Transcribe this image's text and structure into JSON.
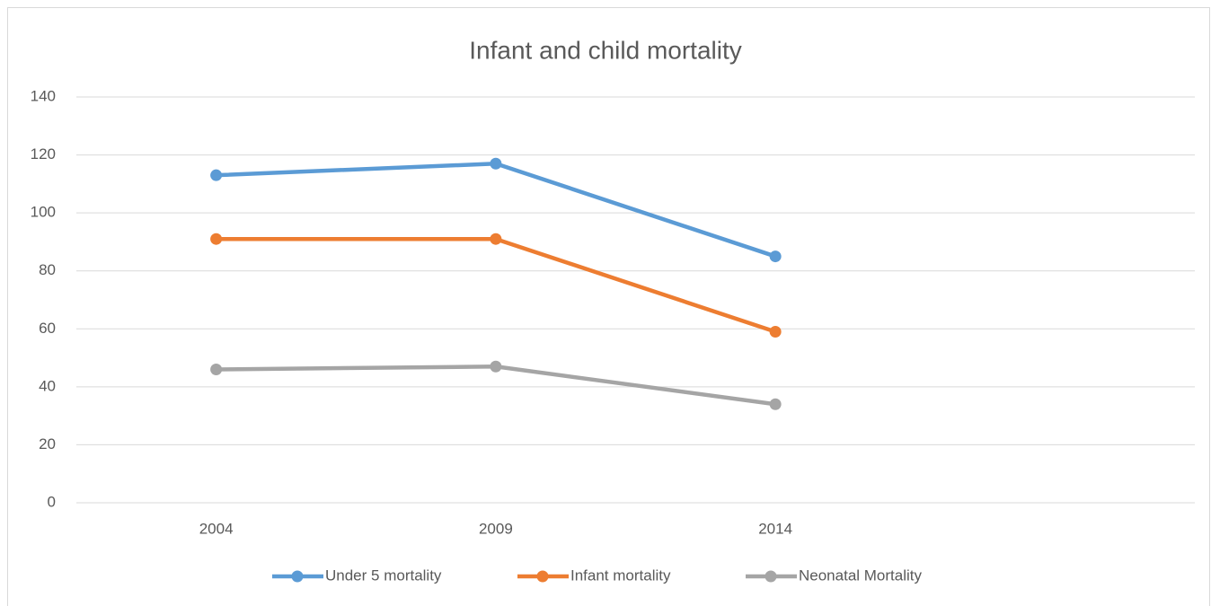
{
  "chart_data": {
    "type": "line",
    "title": "Infant and child mortality",
    "categories": [
      "2004",
      "2009",
      "2014",
      null
    ],
    "series": [
      {
        "name": "Under 5 mortality",
        "color": "#5b9bd5",
        "values": [
          113,
          117,
          85,
          null
        ]
      },
      {
        "name": "Infant mortality",
        "color": "#ed7d31",
        "values": [
          91,
          91,
          59,
          null
        ]
      },
      {
        "name": "Neonatal Mortality",
        "color": "#a5a5a5",
        "values": [
          46,
          47,
          34,
          null
        ]
      }
    ],
    "ylim": [
      0,
      140
    ],
    "yticks": [
      0,
      20,
      40,
      60,
      80,
      100,
      120,
      140
    ],
    "grid": true,
    "legend": "bottom"
  }
}
